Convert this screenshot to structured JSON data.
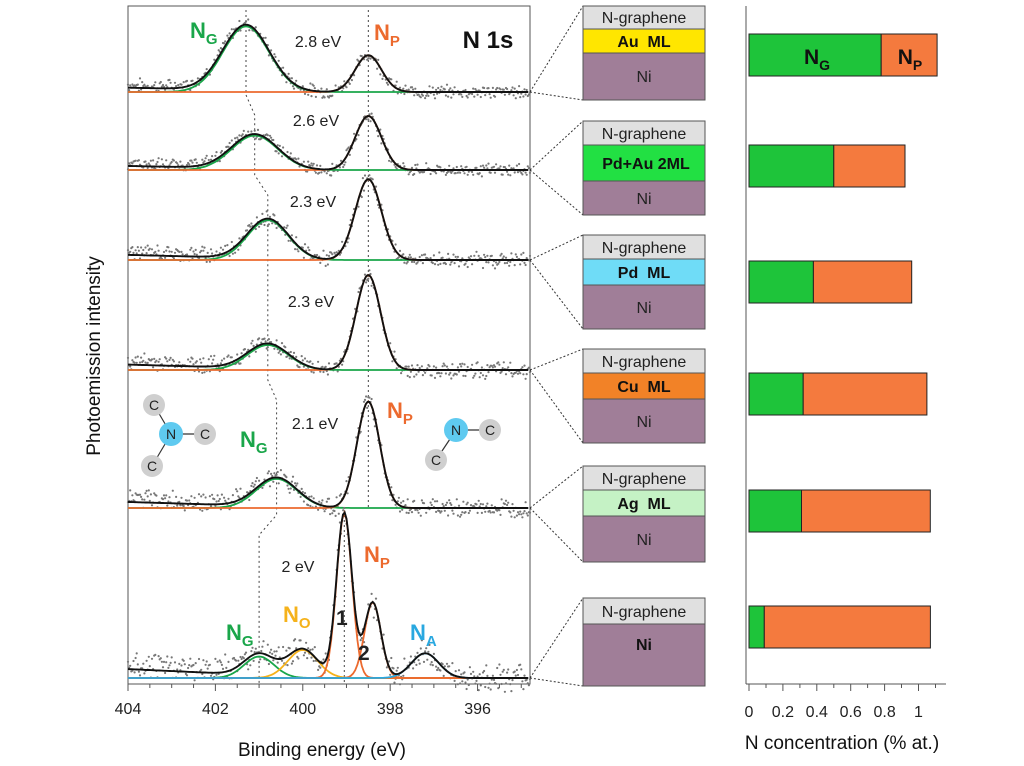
{
  "chart_data": [
    {
      "type": "line",
      "title": "N 1s",
      "xlabel": "Binding energy (eV)",
      "ylabel": "Photoemission intensity",
      "xlim": [
        404.0,
        394.8
      ],
      "xticks": [
        404,
        402,
        400,
        398,
        396
      ],
      "reference_lines_eV": [
        401.0,
        399.0
      ],
      "colors": {
        "NG": "#1aa64a",
        "NP": "#ec6a2e",
        "NO": "#f5b21b",
        "NA": "#29a8e0",
        "data": "#777777",
        "envelope": "#111111",
        "guide": "#444444"
      },
      "panels": [
        {
          "peak_gap": "2.8 eV",
          "labels": [
            "NG",
            "NP"
          ],
          "NG_center": 401.3,
          "NG_height": 0.82,
          "NG_width": 0.85,
          "NP_center": 398.5,
          "NP_height": 0.46,
          "NP_width": 0.48
        },
        {
          "peak_gap": "2.6 eV",
          "NG_center": 401.1,
          "NG_height": 0.46,
          "NG_width": 0.85,
          "NP_center": 398.5,
          "NP_height": 0.72,
          "NP_width": 0.48
        },
        {
          "peak_gap": "2.3 eV",
          "NG_center": 400.8,
          "NG_height": 0.42,
          "NG_width": 0.75,
          "NP_center": 398.5,
          "NP_height": 0.85,
          "NP_width": 0.48
        },
        {
          "peak_gap": "2.3 eV",
          "NG_center": 400.8,
          "NG_height": 0.25,
          "NG_width": 0.75,
          "NP_center": 398.5,
          "NP_height": 0.95,
          "NP_width": 0.45
        },
        {
          "peak_gap": "2.1 eV",
          "labels": [
            "NG",
            "NP"
          ],
          "NG_center": 400.6,
          "NG_height": 0.26,
          "NG_width": 0.75,
          "NP_center": 398.5,
          "NP_height": 0.95,
          "NP_width": 0.42
        },
        {
          "peak_gap": "2 eV",
          "labels": [
            "NG",
            "NO",
            "NP",
            "NA"
          ],
          "components": [
            {
              "label": "NG",
              "center": 401.0,
              "height": 0.13,
              "width": 0.55
            },
            {
              "label": "NO",
              "center": 400.0,
              "height": 0.17,
              "width": 0.55
            },
            {
              "label": "NP1",
              "center": 399.05,
              "height": 1.0,
              "width": 0.28
            },
            {
              "label": "NP2",
              "center": 398.4,
              "height": 0.46,
              "width": 0.3
            },
            {
              "label": "NA",
              "center": 397.2,
              "height": 0.15,
              "width": 0.5
            }
          ]
        }
      ],
      "molecules": {
        "graphitic": {
          "center": "N",
          "neighbors": [
            "C",
            "C",
            "C"
          ]
        },
        "pyridinic": {
          "center": "N",
          "neighbors": [
            "C",
            "C"
          ]
        }
      }
    },
    {
      "type": "diagram",
      "description": "sample layer stacks",
      "stacks": [
        {
          "layers": [
            "N-graphene",
            "Au  ML",
            "Ni"
          ],
          "interlayer_color": "#ffe600"
        },
        {
          "layers": [
            "N-graphene",
            "Pd+Au 2ML",
            "Ni"
          ],
          "interlayer_color": "#22e043"
        },
        {
          "layers": [
            "N-graphene",
            "Pd  ML",
            "Ni"
          ],
          "interlayer_color": "#6fdcf7"
        },
        {
          "layers": [
            "N-graphene",
            "Cu  ML",
            "Ni"
          ],
          "interlayer_color": "#f28227"
        },
        {
          "layers": [
            "N-graphene",
            "Ag  ML",
            "Ni"
          ],
          "interlayer_color": "#c5f2c5"
        },
        {
          "layers": [
            "N-graphene",
            "Ni"
          ],
          "interlayer_color": null
        }
      ],
      "colors": {
        "graphene": "#e0e0e0",
        "ni": "#a07e98"
      }
    },
    {
      "type": "bar",
      "orientation": "horizontal",
      "stacked": true,
      "xlabel": "N concentration (% at.)",
      "xlim": [
        0,
        1.1
      ],
      "xticks": [
        0,
        0.2,
        0.4,
        0.6,
        0.8,
        1
      ],
      "xtick_labels": [
        "0",
        "0.2",
        "0.4",
        "0.6",
        "0.8",
        "1"
      ],
      "categories": [
        "Au ML",
        "Pd+Au 2ML",
        "Pd ML",
        "Cu ML",
        "Ag ML",
        "Ni"
      ],
      "series": [
        {
          "name": "NG",
          "color": "#1ec43a",
          "values": [
            0.78,
            0.5,
            0.38,
            0.32,
            0.31,
            0.09
          ]
        },
        {
          "name": "NP",
          "color": "#f47a3e",
          "values": [
            0.33,
            0.42,
            0.58,
            0.73,
            0.76,
            0.98
          ]
        }
      ],
      "bar_labels": {
        "bar_index": 0,
        "NG": "N",
        "NG_sub": "G",
        "NP": "N",
        "NP_sub": "P"
      }
    }
  ],
  "labels": {
    "title": "N 1s",
    "NG": "N",
    "NG_sub": "G",
    "NP": "N",
    "NP_sub": "P",
    "NO": "N",
    "NO_sub": "O",
    "NA": "N",
    "NA_sub": "A",
    "peak1": "1",
    "peak2": "2"
  }
}
